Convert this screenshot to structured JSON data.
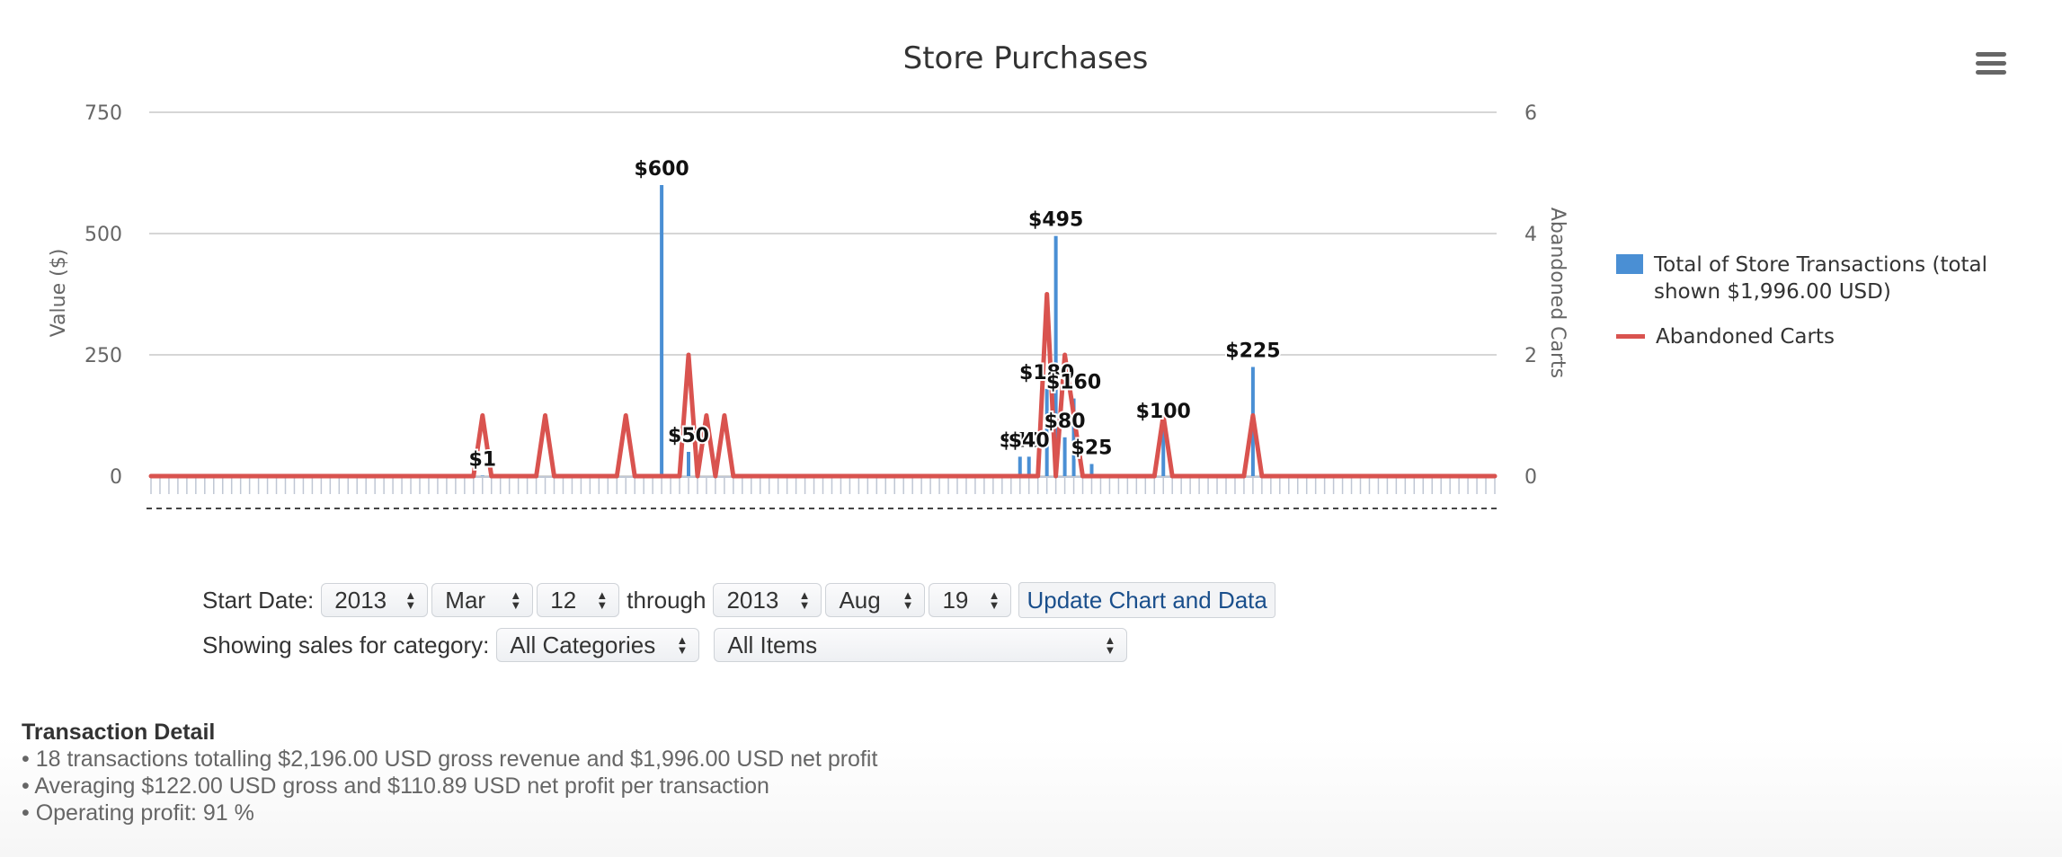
{
  "chart_data": {
    "type": "bar",
    "title": "Store Purchases",
    "ylabel_left": "Value ($)",
    "ylabel_right": "Abandoned Carts",
    "ylim_left": [
      0,
      750
    ],
    "yticks_left": [
      "0",
      "250",
      "500",
      "750"
    ],
    "ylim_right": [
      0,
      6
    ],
    "yticks_right": [
      "0",
      "2",
      "4",
      "6"
    ],
    "grid": true,
    "legend_position": "right",
    "series": [
      {
        "name": "Total of Store Transactions (total shown $1,996.00 USD)",
        "type": "bar",
        "color": "#4a8fd4",
        "points": [
          {
            "day": 37,
            "value": 1,
            "label": "$1"
          },
          {
            "day": 57,
            "value": 600,
            "label": "$600"
          },
          {
            "day": 60,
            "value": 50,
            "label": "$50"
          },
          {
            "day": 97,
            "value": 40,
            "label": "$40"
          },
          {
            "day": 98,
            "value": 40,
            "label": "$40"
          },
          {
            "day": 100,
            "value": 180,
            "label": "$180"
          },
          {
            "day": 101,
            "value": 495,
            "label": "$495"
          },
          {
            "day": 102,
            "value": 80,
            "label": "$80"
          },
          {
            "day": 103,
            "value": 160,
            "label": "$160"
          },
          {
            "day": 105,
            "value": 25,
            "label": "$25"
          },
          {
            "day": 113,
            "value": 100,
            "label": "$100"
          },
          {
            "day": 123,
            "value": 225,
            "label": "$225"
          }
        ]
      },
      {
        "name": "Abandoned Carts",
        "type": "line",
        "color": "#d9534f",
        "points": [
          [
            37,
            1
          ],
          [
            44,
            1
          ],
          [
            53,
            1
          ],
          [
            60,
            2
          ],
          [
            62,
            1
          ],
          [
            64,
            1
          ],
          [
            100,
            3
          ],
          [
            102,
            2
          ],
          [
            103,
            1
          ],
          [
            113,
            1
          ],
          [
            123,
            1
          ]
        ]
      }
    ],
    "x_range_days": [
      0,
      150
    ]
  },
  "legend": {
    "transactions": "Total of Store Transactions (total shown $1,996.00 USD)",
    "abandoned": "Abandoned Carts"
  },
  "controls": {
    "start_label": "Start Date:",
    "start_year": "2013",
    "start_month": "Mar",
    "start_day": "12",
    "through_label": "through",
    "end_year": "2013",
    "end_month": "Aug",
    "end_day": "19",
    "update_button": "Update Chart and Data",
    "category_label": "Showing sales for category:",
    "category_value": "All Categories",
    "item_value": "All Items"
  },
  "detail": {
    "title": "Transaction Detail",
    "line1": "• 18 transactions totalling $2,196.00 USD gross revenue and $1,996.00 USD net profit",
    "line2": "• Averaging $122.00 USD gross and $110.89 USD net profit per transaction",
    "line3": "• Operating profit: 91 %"
  }
}
